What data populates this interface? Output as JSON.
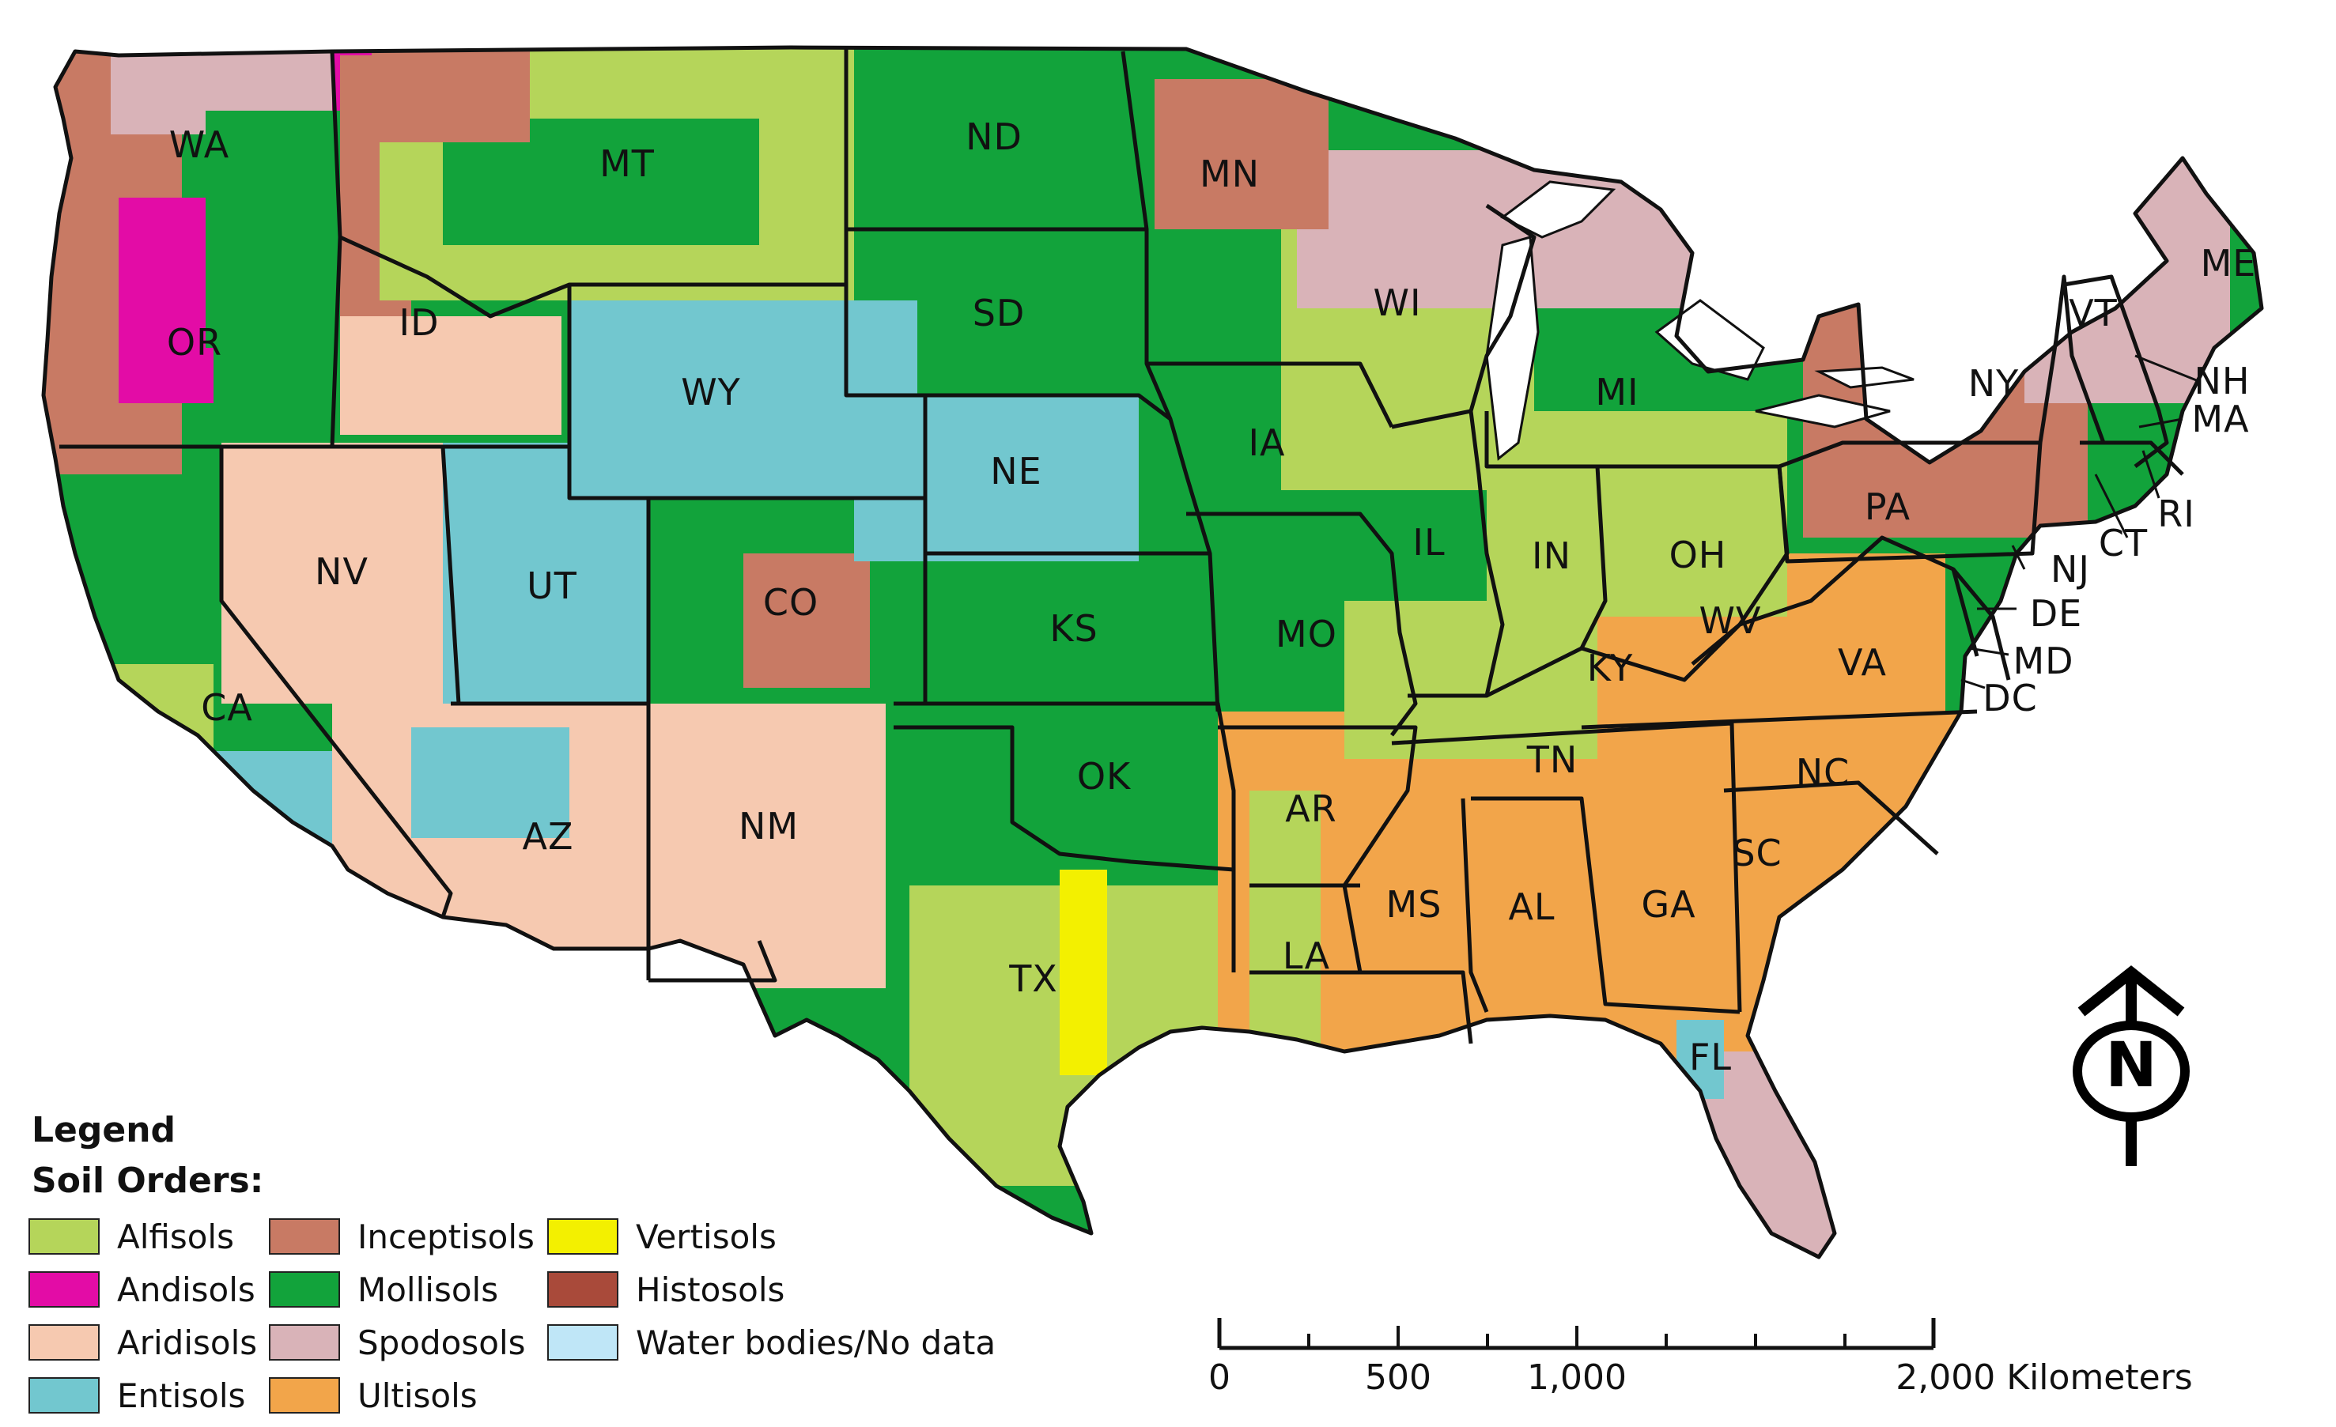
{
  "map": {
    "state_labels": [
      "WA",
      "OR",
      "CA",
      "ID",
      "NV",
      "MT",
      "WY",
      "UT",
      "AZ",
      "CO",
      "NM",
      "ND",
      "SD",
      "NE",
      "KS",
      "OK",
      "TX",
      "MN",
      "IA",
      "MO",
      "AR",
      "LA",
      "WI",
      "IL",
      "MI",
      "IN",
      "OH",
      "KY",
      "TN",
      "MS",
      "AL",
      "GA",
      "FL",
      "SC",
      "NC",
      "VA",
      "WV",
      "PA",
      "NY",
      "ME",
      "VT",
      "NH",
      "MA",
      "CT",
      "RI",
      "NJ",
      "DE",
      "MD",
      "DC"
    ],
    "colors": {
      "alfisols": "#b5d55a",
      "andisols": "#e30ca6",
      "aridisols": "#f6c9b0",
      "entisols": "#72c7cf",
      "inceptisols": "#c87a64",
      "mollisols": "#12a33b",
      "spodosols": "#d9b3b8",
      "ultisols": "#f2a54a",
      "vertisols": "#f3f000",
      "histosols": "#a94a3a",
      "water": "#bfe6f7",
      "border": "#111111"
    }
  },
  "legend": {
    "title": "Legend",
    "subtitle": "Soil Orders:",
    "items": [
      {
        "label": "Alfisols",
        "color": "#b5d55a"
      },
      {
        "label": "Inceptisols",
        "color": "#c87a64"
      },
      {
        "label": "Vertisols",
        "color": "#f3f000"
      },
      {
        "label": "Andisols",
        "color": "#e30ca6"
      },
      {
        "label": "Mollisols",
        "color": "#12a33b"
      },
      {
        "label": "Histosols",
        "color": "#a94a3a"
      },
      {
        "label": "Aridisols",
        "color": "#f6c9b0"
      },
      {
        "label": "Spodosols",
        "color": "#d9b3b8"
      },
      {
        "label": "Water bodies/No data",
        "color": "#bfe6f7"
      },
      {
        "label": "Entisols",
        "color": "#72c7cf"
      },
      {
        "label": "Ultisols",
        "color": "#f2a54a"
      }
    ]
  },
  "scalebar": {
    "labels": [
      "0",
      "500",
      "1,000",
      "2,000 Kilometers"
    ]
  },
  "north_arrow": {
    "letter": "N"
  }
}
